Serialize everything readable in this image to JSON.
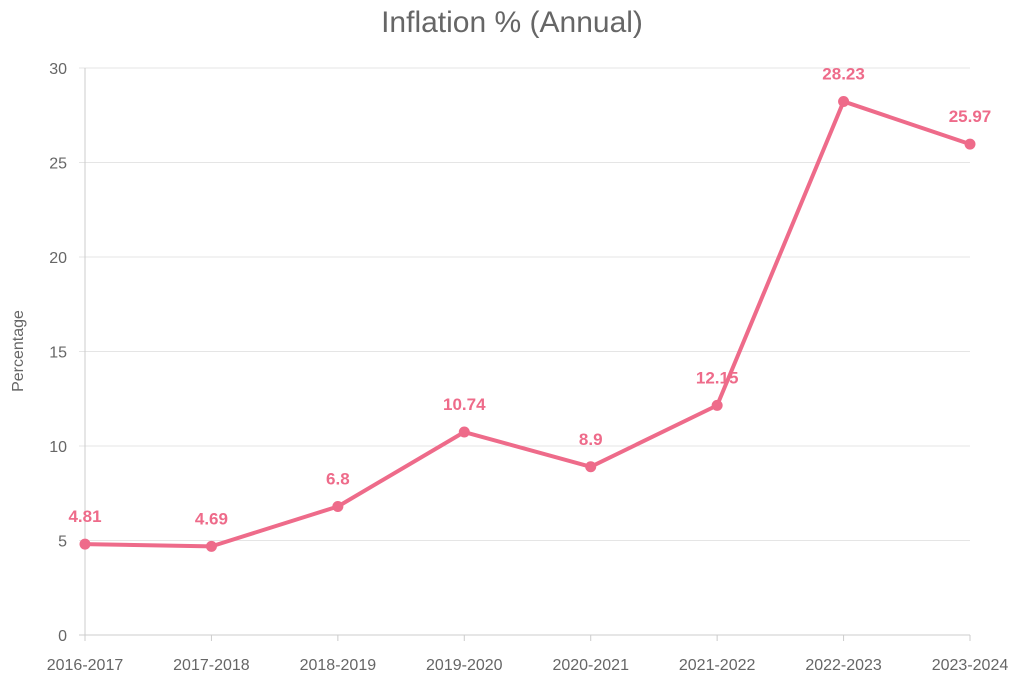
{
  "chart_data": {
    "type": "line",
    "title": "Inflation % (Annual)",
    "xlabel": "",
    "ylabel": "Percentage",
    "categories": [
      "2016-2017",
      "2017-2018",
      "2018-2019",
      "2019-2020",
      "2020-2021",
      "2021-2022",
      "2022-2023",
      "2023-2024"
    ],
    "series": [
      {
        "values": [
          4.81,
          4.69,
          6.8,
          10.74,
          8.9,
          12.15,
          28.23,
          25.97
        ],
        "color": "#ee6b8a"
      }
    ],
    "ylim": [
      0,
      30
    ],
    "yticks": [
      0,
      5,
      10,
      15,
      20,
      25,
      30
    ],
    "grid": true,
    "data_labels": true
  }
}
